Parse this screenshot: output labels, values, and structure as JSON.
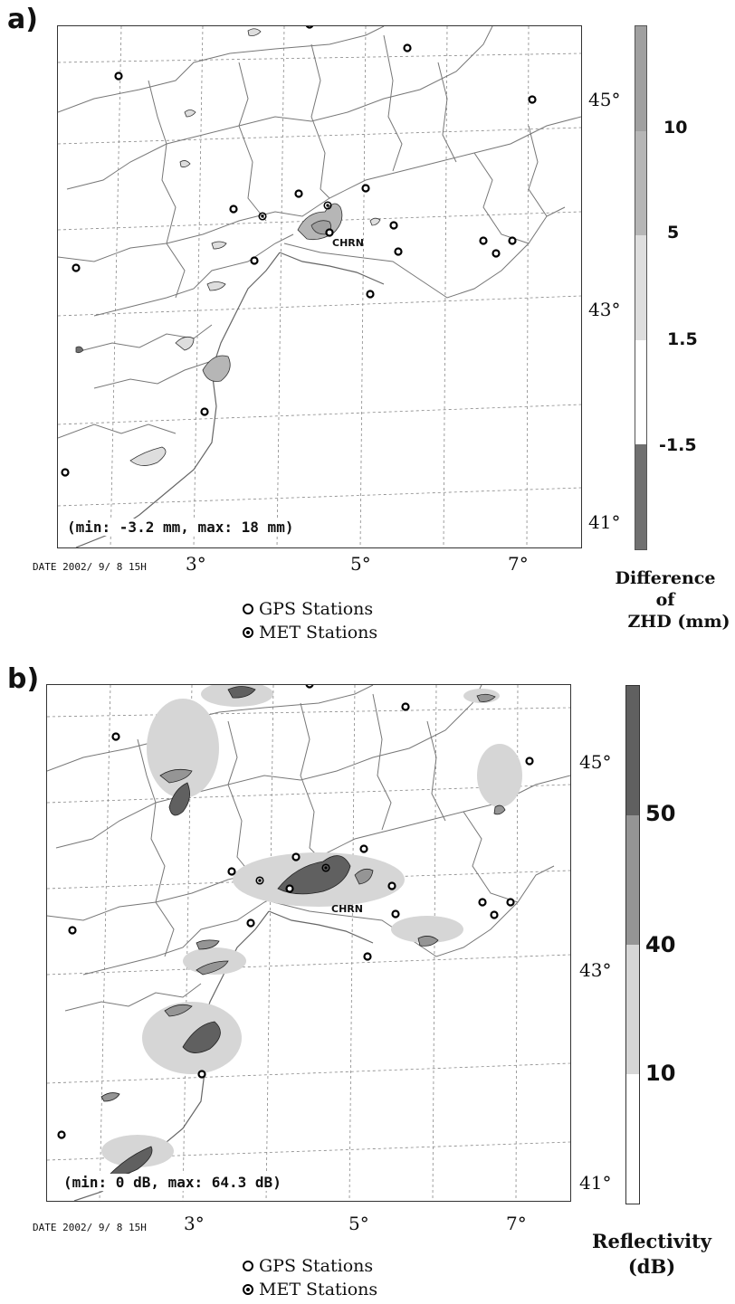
{
  "panel_a": {
    "label": "a)",
    "summary": "(min: -3.2 mm, max: 18 mm)",
    "date_stamp": "DATE 2002/ 9/ 8  15H",
    "lon_labels": [
      "3°",
      "5°",
      "7°"
    ],
    "lat_labels": [
      "45°",
      "43°",
      "41°"
    ],
    "station_label": "CHRN",
    "colorbar": {
      "ticks": [
        "10",
        "5",
        "1.5",
        "-1.5"
      ],
      "colors": [
        "#a0a0a0",
        "#b6b6b6",
        "#dedede",
        "#ffffff",
        "#707070"
      ],
      "title_lines": [
        "Difference",
        "of",
        "ZHD (mm)"
      ]
    },
    "legend": {
      "gps": "GPS Stations",
      "met": "MET Stations"
    }
  },
  "panel_b": {
    "label": "b)",
    "summary": "(min: 0 dB, max: 64.3 dB)",
    "date_stamp": "DATE 2002/ 9/ 8  15H",
    "lon_labels": [
      "3°",
      "5°",
      "7°"
    ],
    "lat_labels": [
      "45°",
      "43°",
      "41°"
    ],
    "station_label": "CHRN",
    "colorbar": {
      "ticks": [
        "50",
        "40",
        "10"
      ],
      "colors": [
        "#606060",
        "#959595",
        "#d6d6d6",
        "#ffffff"
      ],
      "title_lines": [
        "Reflectivity",
        "(dB)"
      ]
    },
    "legend": {
      "gps": "GPS Stations",
      "met": "MET Stations"
    }
  }
}
